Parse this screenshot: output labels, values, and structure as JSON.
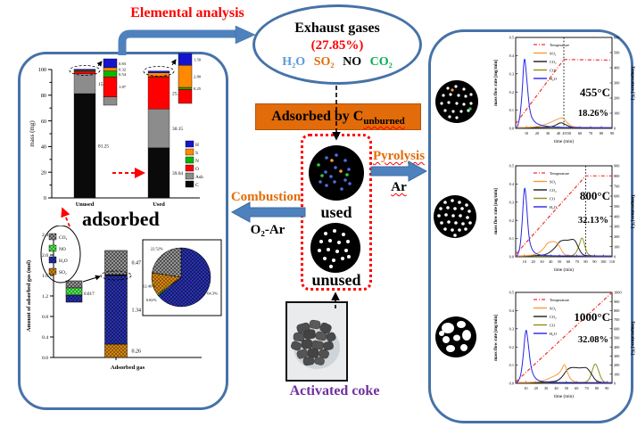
{
  "labels": {
    "elemental_analysis": "Elemental analysis",
    "exhaust_title": "Exhaust gases",
    "exhaust_percent": "(27.85%)",
    "gas_h2o": "H₂O",
    "gas_so2": "SO₂",
    "gas_no": "NO",
    "gas_co2": "CO₂",
    "adsorbed_by": "Adsorbed by C",
    "adsorbed_by_sub": "unburned",
    "used": "used",
    "unused": "unused",
    "pyrolysis": "Pyrolysis",
    "pyrolysis_gas": "Ar",
    "combustion": "Combustion",
    "combustion_gas": "O₂-Ar",
    "activated_coke": "Activated coke",
    "adsorbed": "adsorbed"
  },
  "colors": {
    "panel_border": "#4672a8",
    "arrow_blue": "#4f81bd",
    "banner_orange": "#e26b0a",
    "accent_red": "#ff0000",
    "process_orange": "#e36c09",
    "coke_purple": "#7030a0"
  },
  "chart_data": [
    {
      "id": "elemental-mass",
      "type": "bar",
      "stacked": true,
      "ylabel": "mass (mg)",
      "ylim": [
        0,
        100
      ],
      "yticks": [
        0,
        20,
        40,
        60,
        80,
        100
      ],
      "categories": [
        "Unused",
        "Used"
      ],
      "series": [
        {
          "name": "C",
          "color": "#0a0a0a",
          "values": [
            81.25,
            39.04
          ]
        },
        {
          "name": "Ash",
          "color": "#8c8c8c",
          "values": [
            15.48,
            30.15
          ]
        },
        {
          "name": "O",
          "color": "#fe0000",
          "values": [
            1.87,
            25.16
          ]
        },
        {
          "name": "N",
          "color": "#00b800",
          "values": [
            0.54,
            0.25
          ]
        },
        {
          "name": "S",
          "color": "#ff8a00",
          "values": [
            0.32,
            2.8
          ]
        },
        {
          "name": "H",
          "color": "#1515cf",
          "values": [
            0.83,
            1.5
          ]
        }
      ],
      "legend_order": [
        "H",
        "S",
        "N",
        "O",
        "Ash",
        "C"
      ],
      "inset_order": [
        "H",
        "S",
        "N",
        "O"
      ],
      "inset_labels": {
        "Unused": [
          "0.83",
          "0.32",
          "0.54",
          "1.87"
        ],
        "Used": [
          "1.50",
          "2.80",
          "0.25"
        ]
      }
    },
    {
      "id": "adsorbed-gas",
      "type": "bar+pie",
      "ylabel": "Amount of adsorbed gas (mol)",
      "xlabel": "Adsorbed gas",
      "ylim": [
        0,
        2.4
      ],
      "ytick_step": 0.4,
      "series": [
        {
          "name": "SO₂",
          "key": "so2",
          "color": "#e8951c",
          "value": 0.26,
          "label": "0.26",
          "pct": "12.46%"
        },
        {
          "name": "H₂O",
          "key": "h2o",
          "color": "#3038c8",
          "value": 1.34,
          "label": "1.34",
          "pct": "64.3%"
        },
        {
          "name": "NO",
          "key": "no",
          "color": "#00a000",
          "value": 0.017,
          "label": "0.017",
          "pct": "0.82%"
        },
        {
          "name": "CO₂",
          "key": "co2",
          "color": "#3c3c3c",
          "value": 0.47,
          "label": "0.47",
          "pct": "22.52%"
        }
      ],
      "legend_order": [
        "co2",
        "no",
        "h2o",
        "so2"
      ]
    },
    {
      "id": "tpd-455",
      "type": "line",
      "temp_label": "455°C",
      "pct_label": "18.26%",
      "xlabel": "time (min)",
      "ylabel": "mass flow rate [mg/min]",
      "y2label": "Temperature [°C]",
      "xlim": [
        0,
        90
      ],
      "xtick_step": 10,
      "ylim": [
        0,
        0.5
      ],
      "ytick_step": 0.1,
      "y2lim": [
        0,
        600
      ],
      "y2tick_step": 100,
      "dashed_x": 45,
      "dashed_x_label": "455",
      "legend": [
        "Temperature",
        "SO₂",
        "CO₂",
        "CO",
        "H₂O"
      ],
      "temperature": {
        "color": "#f03030",
        "points": [
          [
            0,
            30
          ],
          [
            45,
            455
          ],
          [
            90,
            450
          ]
        ]
      },
      "series": [
        {
          "name": "CO",
          "color": "#8f8f1f",
          "points": [
            [
              0,
              0.004
            ],
            [
              90,
              0.004
            ]
          ]
        },
        {
          "name": "CO₂",
          "color": "#1c1c1c",
          "points": [
            [
              0,
              0.004
            ],
            [
              28,
              0.004
            ],
            [
              36,
              0.012
            ],
            [
              42,
              0.035
            ],
            [
              46,
              0.022
            ],
            [
              52,
              0.006
            ],
            [
              60,
              0.004
            ],
            [
              90,
              0.004
            ]
          ]
        },
        {
          "name": "SO₂",
          "color": "#f79a3c",
          "points": [
            [
              0,
              0.004
            ],
            [
              18,
              0.006
            ],
            [
              28,
              0.02
            ],
            [
              38,
              0.048
            ],
            [
              44,
              0.062
            ],
            [
              48,
              0.03
            ],
            [
              53,
              0.01
            ],
            [
              60,
              0.005
            ],
            [
              90,
              0.004
            ]
          ]
        },
        {
          "name": "H₂O",
          "color": "#2525e8",
          "points": [
            [
              0,
              0
            ],
            [
              3,
              0.01
            ],
            [
              6,
              0.18
            ],
            [
              8,
              0.42
            ],
            [
              10,
              0.3
            ],
            [
              13,
              0.09
            ],
            [
              17,
              0.035
            ],
            [
              24,
              0.015
            ],
            [
              35,
              0.008
            ],
            [
              50,
              0.005
            ],
            [
              90,
              0.004
            ]
          ]
        }
      ]
    },
    {
      "id": "tpd-800",
      "type": "line",
      "temp_label": "800°C",
      "pct_label": "32.13%",
      "xlabel": "time (min)",
      "ylabel": "mass flow rate [mg/min]",
      "y2label": "Temperature [°C]",
      "xlim": [
        0,
        110
      ],
      "xtick_step": 10,
      "ylim": [
        0,
        0.5
      ],
      "ytick_step": 0.1,
      "y2lim": [
        0,
        900
      ],
      "y2tick_step": 100,
      "dashed_x": 80,
      "dashed_x_label": "",
      "legend": [
        "Temperature",
        "SO₂",
        "CO₂",
        "CO",
        "H₂O"
      ],
      "temperature": {
        "color": "#f03030",
        "points": [
          [
            0,
            25
          ],
          [
            80,
            800
          ],
          [
            110,
            800
          ]
        ]
      },
      "series": [
        {
          "name": "CO",
          "color": "#8f8f1f",
          "points": [
            [
              0,
              0.004
            ],
            [
              60,
              0.004
            ],
            [
              68,
              0.01
            ],
            [
              73,
              0.07
            ],
            [
              75,
              0.105
            ],
            [
              77,
              0.1
            ],
            [
              80,
              0.04
            ],
            [
              83,
              0.008
            ],
            [
              90,
              0.004
            ],
            [
              110,
              0.004
            ]
          ]
        },
        {
          "name": "CO₂",
          "color": "#1c1c1c",
          "points": [
            [
              0,
              0.004
            ],
            [
              28,
              0.005
            ],
            [
              38,
              0.018
            ],
            [
              46,
              0.055
            ],
            [
              50,
              0.085
            ],
            [
              55,
              0.092
            ],
            [
              60,
              0.09
            ],
            [
              65,
              0.097
            ],
            [
              68,
              0.09
            ],
            [
              72,
              0.045
            ],
            [
              76,
              0.012
            ],
            [
              82,
              0.005
            ],
            [
              110,
              0.004
            ]
          ]
        },
        {
          "name": "SO₂",
          "color": "#f79a3c",
          "points": [
            [
              0,
              0.004
            ],
            [
              18,
              0.006
            ],
            [
              26,
              0.018
            ],
            [
              33,
              0.05
            ],
            [
              36,
              0.075
            ],
            [
              40,
              0.082
            ],
            [
              45,
              0.086
            ],
            [
              50,
              0.06
            ],
            [
              54,
              0.02
            ],
            [
              58,
              0.007
            ],
            [
              65,
              0.004
            ],
            [
              110,
              0.004
            ]
          ]
        },
        {
          "name": "H₂O",
          "color": "#2525e8",
          "points": [
            [
              0,
              0
            ],
            [
              4,
              0.01
            ],
            [
              7,
              0.15
            ],
            [
              10,
              0.41
            ],
            [
              12,
              0.32
            ],
            [
              15,
              0.1
            ],
            [
              19,
              0.03
            ],
            [
              26,
              0.01
            ],
            [
              40,
              0.005
            ],
            [
              110,
              0.004
            ]
          ]
        }
      ]
    },
    {
      "id": "tpd-1000",
      "type": "line",
      "temp_label": "1000°C",
      "pct_label": "32.08%",
      "xlabel": "time (min)",
      "ylabel": "mass flow rate [mg/min]",
      "y2label": "Temperature [°C]",
      "xlim": [
        0,
        95
      ],
      "xtick_step": 10,
      "ylim": [
        0,
        0.5
      ],
      "ytick_step": 0.1,
      "y2lim": [
        0,
        1000
      ],
      "y2tick_step": 100,
      "dashed_x": null,
      "dashed_x_label": "",
      "legend": [
        "Temperature",
        "SO₂",
        "CO₂",
        "CO",
        "H₂O"
      ],
      "temperature": {
        "color": "#f03030",
        "points": [
          [
            0,
            15
          ],
          [
            95,
            1000
          ]
        ]
      },
      "series": [
        {
          "name": "CO",
          "color": "#8f8f1f",
          "points": [
            [
              0,
              0.004
            ],
            [
              65,
              0.004
            ],
            [
              72,
              0.01
            ],
            [
              76,
              0.08
            ],
            [
              78,
              0.11
            ],
            [
              80,
              0.1
            ],
            [
              83,
              0.045
            ],
            [
              86,
              0.01
            ],
            [
              90,
              0.004
            ],
            [
              95,
              0.004
            ]
          ]
        },
        {
          "name": "CO₂",
          "color": "#1c1c1c",
          "points": [
            [
              0,
              0.004
            ],
            [
              35,
              0.005
            ],
            [
              44,
              0.02
            ],
            [
              50,
              0.07
            ],
            [
              54,
              0.088
            ],
            [
              60,
              0.085
            ],
            [
              66,
              0.085
            ],
            [
              70,
              0.088
            ],
            [
              74,
              0.06
            ],
            [
              78,
              0.02
            ],
            [
              82,
              0.006
            ],
            [
              95,
              0.004
            ]
          ]
        },
        {
          "name": "SO₂",
          "color": "#f79a3c",
          "points": [
            [
              0,
              0.004
            ],
            [
              20,
              0.005
            ],
            [
              28,
              0.015
            ],
            [
              36,
              0.035
            ],
            [
              42,
              0.05
            ],
            [
              46,
              0.08
            ],
            [
              48,
              0.11
            ],
            [
              50,
              0.08
            ],
            [
              53,
              0.03
            ],
            [
              57,
              0.01
            ],
            [
              62,
              0.005
            ],
            [
              95,
              0.004
            ]
          ]
        },
        {
          "name": "H₂O",
          "color": "#2525e8",
          "points": [
            [
              0,
              0
            ],
            [
              4,
              0.01
            ],
            [
              7,
              0.12
            ],
            [
              10,
              0.32
            ],
            [
              12,
              0.24
            ],
            [
              15,
              0.08
            ],
            [
              19,
              0.025
            ],
            [
              26,
              0.008
            ],
            [
              40,
              0.004
            ],
            [
              95,
              0.004
            ]
          ]
        }
      ]
    }
  ]
}
